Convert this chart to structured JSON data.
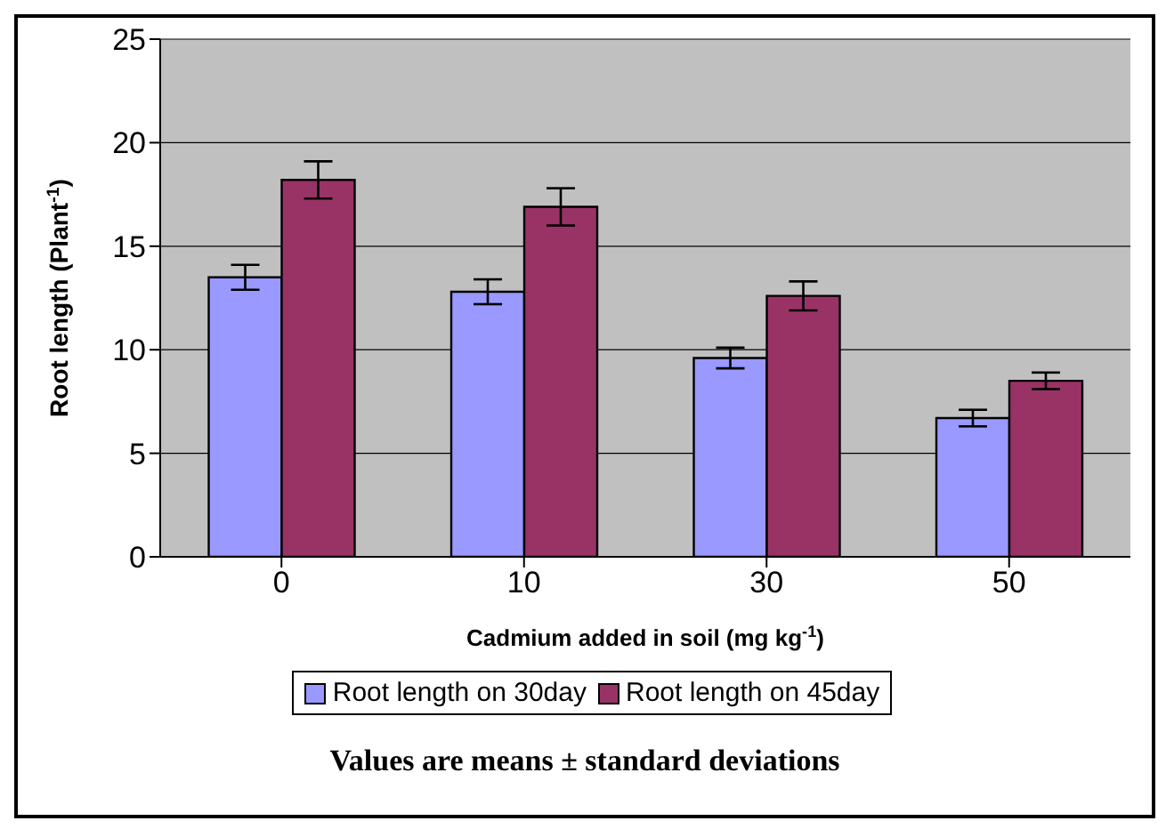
{
  "chart_data": {
    "type": "bar",
    "categories": [
      "0",
      "10",
      "30",
      "50"
    ],
    "series": [
      {
        "name": "Root length on 30day",
        "color": "#9999ff",
        "values": [
          13.5,
          12.8,
          9.6,
          6.7
        ],
        "errors": [
          0.6,
          0.6,
          0.5,
          0.4
        ]
      },
      {
        "name": "Root length on 45day",
        "color": "#993366",
        "values": [
          18.2,
          16.9,
          12.6,
          8.5
        ],
        "errors": [
          0.9,
          0.9,
          0.7,
          0.4
        ]
      }
    ],
    "ylim": [
      0,
      25
    ],
    "yticks": [
      0,
      5,
      10,
      15,
      20,
      25
    ],
    "grid": "y",
    "legend": "bottom",
    "xlabel": "Cadmium added in soil (mg kg$^{-1}$)",
    "ylabel": "Root length (Plant$^{-1}$)",
    "annotations": [
      "Values are means ± standard deviations"
    ]
  }
}
